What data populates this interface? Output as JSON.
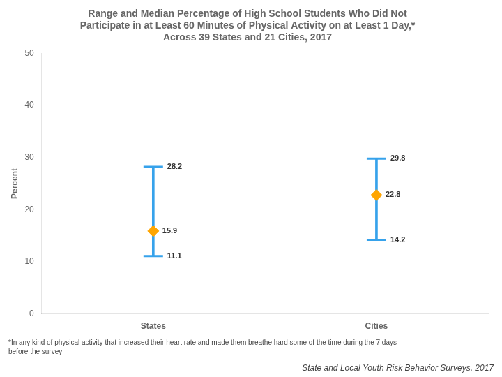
{
  "chart_data": {
    "type": "range",
    "title": [
      "Range and Median Percentage of High School Students Who Did Not",
      "Participate in at Least 60 Minutes of Physical Activity on at Least 1 Day,*",
      "Across 39 States and 21 Cities, 2017"
    ],
    "categories": [
      "States",
      "Cities"
    ],
    "series": [
      {
        "type": "range",
        "low": [
          11.1,
          14.2
        ],
        "high": [
          28.2,
          29.8
        ],
        "color": "#36a2eb"
      },
      {
        "type": "scatter",
        "marker": "diamond",
        "values": [
          15.9,
          22.8
        ],
        "color": "#FFA500"
      }
    ],
    "ylabel": "Percent",
    "ylim": [
      0,
      50
    ],
    "yticks": [
      0,
      10,
      20,
      30,
      40,
      50
    ],
    "grid": false,
    "data_labels": true,
    "footnote": "*In any kind of physical activity that increased their heart rate and made them breathe hard some of the time during the 7 days\nbefore the survey",
    "source": "State and Local Youth Risk Behavior Surveys, 2017"
  }
}
